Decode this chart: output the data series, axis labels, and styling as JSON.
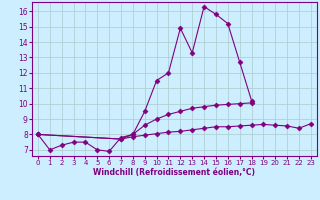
{
  "line1_x": [
    0,
    1,
    2,
    3,
    4,
    5,
    6,
    7,
    8,
    9,
    10,
    11,
    12,
    13,
    14,
    15,
    16,
    17,
    18
  ],
  "line1_y": [
    8.0,
    7.0,
    7.3,
    7.5,
    7.5,
    7.0,
    6.9,
    7.8,
    8.0,
    9.5,
    11.5,
    12.0,
    14.9,
    13.3,
    16.3,
    15.8,
    15.2,
    12.7,
    10.2
  ],
  "line2_x": [
    0,
    7,
    8,
    9,
    10,
    11,
    12,
    13,
    14,
    15,
    16,
    17,
    18
  ],
  "line2_y": [
    8.0,
    7.7,
    8.0,
    8.6,
    9.0,
    9.3,
    9.5,
    9.7,
    9.8,
    9.9,
    9.95,
    10.0,
    10.05
  ],
  "line3_x": [
    0,
    7,
    8,
    9,
    10,
    11,
    12,
    13,
    14,
    15,
    16,
    17,
    18,
    19,
    20,
    21,
    22,
    23
  ],
  "line3_y": [
    8.0,
    7.7,
    7.85,
    7.95,
    8.05,
    8.15,
    8.2,
    8.3,
    8.4,
    8.5,
    8.5,
    8.55,
    8.6,
    8.65,
    8.6,
    8.55,
    8.4,
    8.7
  ],
  "color": "#800080",
  "bg_color": "#cceeff",
  "grid_color": "#aacccc",
  "xlabel": "Windchill (Refroidissement éolien,°C)",
  "xlim": [
    -0.5,
    23.5
  ],
  "ylim": [
    6.6,
    16.6
  ],
  "yticks": [
    7,
    8,
    9,
    10,
    11,
    12,
    13,
    14,
    15,
    16
  ],
  "xticks": [
    0,
    1,
    2,
    3,
    4,
    5,
    6,
    7,
    8,
    9,
    10,
    11,
    12,
    13,
    14,
    15,
    16,
    17,
    18,
    19,
    20,
    21,
    22,
    23
  ]
}
